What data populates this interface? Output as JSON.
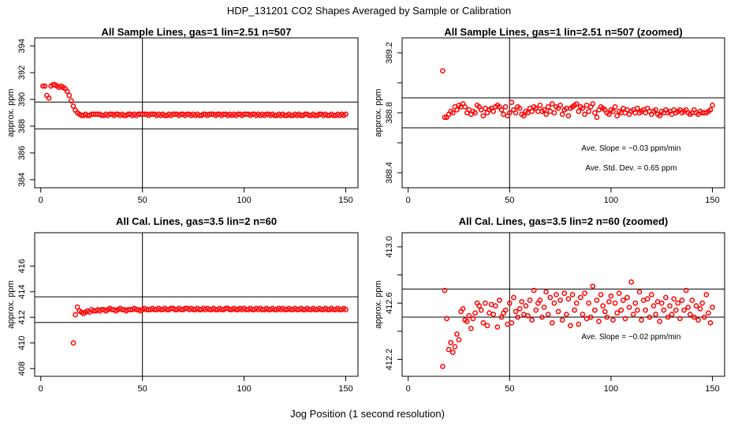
{
  "figure": {
    "title": "HDP_131201  CO2 Shapes Averaged by Sample or Calibration",
    "xlabel": "Jog Position (1 second resolution)"
  },
  "chart_data": [
    {
      "type": "scatter",
      "title": "All Sample Lines, gas=1 lin=2.51 n=507",
      "ylabel": "approx. ppm",
      "xlim": [
        -3,
        156
      ],
      "ylim": [
        383.4,
        394.6
      ],
      "xticks": [
        0,
        50,
        100,
        150
      ],
      "yticks": [
        384,
        386,
        388,
        390,
        392,
        394
      ],
      "hlines": [
        387.8,
        389.8
      ],
      "vline": 50,
      "marker_color": "#ff0000",
      "annotations": [],
      "series": [
        {
          "x_start": 1,
          "x_step": 1,
          "y": [
            391.0,
            391.0,
            390.3,
            390.1,
            391.0,
            391.1,
            391.1,
            391.0,
            390.9,
            391.0,
            390.9,
            390.8,
            390.6,
            390.3,
            389.9,
            389.5,
            389.2,
            389.0,
            388.9,
            388.8,
            388.8,
            388.9,
            388.8,
            388.8,
            388.9,
            388.9,
            388.9,
            388.9,
            388.9,
            388.8,
            388.8,
            388.9,
            388.8,
            388.9,
            388.9,
            388.8,
            388.9,
            388.9,
            388.8,
            388.9,
            388.8,
            388.8,
            388.9,
            388.9,
            388.8,
            388.9,
            388.8,
            388.9,
            388.9,
            388.9,
            388.9,
            388.9,
            388.8,
            388.9,
            388.9,
            388.9,
            388.8,
            388.9,
            388.8,
            388.9,
            388.8,
            388.8,
            388.9,
            388.8,
            388.9,
            388.9,
            388.9,
            388.8,
            388.9,
            388.9,
            388.8,
            388.9,
            388.9,
            388.8,
            388.9,
            388.8,
            388.9,
            388.8,
            388.8,
            388.9,
            388.9,
            388.8,
            388.9,
            388.9,
            388.9,
            388.8,
            388.9,
            388.9,
            388.8,
            388.9,
            388.9,
            388.8,
            388.9,
            388.8,
            388.9,
            388.8,
            388.9,
            388.9,
            388.8,
            388.9,
            388.9,
            388.9,
            388.8,
            388.9,
            388.9,
            388.8,
            388.9,
            388.8,
            388.9,
            388.8,
            388.9,
            388.9,
            388.8,
            388.9,
            388.8,
            388.8,
            388.9,
            388.8,
            388.9,
            388.8,
            388.8,
            388.9,
            388.8,
            388.8,
            388.9,
            388.8,
            388.9,
            388.8,
            388.8,
            388.9,
            388.9,
            388.8,
            388.8,
            388.9,
            388.8,
            388.8,
            388.9,
            388.9,
            388.8,
            388.9,
            388.8,
            388.8,
            388.9,
            388.8,
            388.8,
            388.9,
            388.8,
            388.9,
            388.8,
            388.9
          ]
        }
      ]
    },
    {
      "type": "scatter",
      "title": "All Sample Lines, gas=1 lin=2.51 n=507 (zoomed)",
      "ylabel": "approx. ppm",
      "xlim": [
        -3,
        156
      ],
      "ylim": [
        388.3,
        389.3
      ],
      "xticks": [
        0,
        50,
        100,
        150
      ],
      "yticks": [
        388.4,
        388.6,
        388.8,
        389.0,
        389.2
      ],
      "ytick_labels": [
        "388.4",
        "",
        "388.8",
        "",
        "389.2"
      ],
      "hlines": [
        388.7,
        388.9
      ],
      "vline": 50,
      "marker_color": "#ff0000",
      "annotations": [
        "Ave. Slope =  −0.03  ppm/min",
        "Ave. Std. Dev. =  0.65  ppm"
      ],
      "series": [
        {
          "x_start": 17,
          "x_step": 1,
          "y": [
            389.08,
            388.77,
            388.77,
            388.79,
            388.81,
            388.8,
            388.84,
            388.82,
            388.85,
            388.84,
            388.86,
            388.84,
            388.8,
            388.82,
            388.79,
            388.81,
            388.8,
            388.85,
            388.84,
            388.82,
            388.78,
            388.83,
            388.8,
            388.82,
            388.83,
            388.81,
            388.84,
            388.85,
            388.84,
            388.82,
            388.79,
            388.84,
            388.78,
            388.8,
            388.87,
            388.82,
            388.8,
            388.84,
            388.83,
            388.79,
            388.78,
            388.81,
            388.8,
            388.83,
            388.81,
            388.84,
            388.83,
            388.81,
            388.85,
            388.81,
            388.82,
            388.79,
            388.84,
            388.81,
            388.86,
            388.8,
            388.84,
            388.83,
            388.85,
            388.79,
            388.82,
            388.83,
            388.78,
            388.83,
            388.84,
            388.85,
            388.86,
            388.81,
            388.84,
            388.83,
            388.79,
            388.85,
            388.81,
            388.84,
            388.86,
            388.8,
            388.77,
            388.82,
            388.84,
            388.83,
            388.82,
            388.8,
            388.79,
            388.82,
            388.81,
            388.84,
            388.78,
            388.81,
            388.8,
            388.83,
            388.8,
            388.82,
            388.79,
            388.81,
            388.82,
            388.8,
            388.83,
            388.8,
            388.81,
            388.82,
            388.8,
            388.83,
            388.81,
            388.79,
            388.81,
            388.82,
            388.79,
            388.78,
            388.81,
            388.8,
            388.82,
            388.8,
            388.81,
            388.79,
            388.82,
            388.8,
            388.81,
            388.82,
            388.8,
            388.81,
            388.82,
            388.8,
            388.79,
            388.8,
            388.82,
            388.8,
            388.79,
            388.81,
            388.8,
            388.8,
            388.8,
            388.81,
            388.82,
            388.85
          ]
        }
      ]
    },
    {
      "type": "scatter",
      "title": "All Cal. Lines, gas=3.5 lin=2 n=60",
      "ylabel": "approx. ppm",
      "xlim": [
        -3,
        156
      ],
      "ylim": [
        407.4,
        418.6
      ],
      "xticks": [
        0,
        50,
        100,
        150
      ],
      "yticks": [
        408,
        410,
        412,
        414,
        416
      ],
      "hlines": [
        411.6,
        413.6
      ],
      "vline": 50,
      "marker_color": "#ff0000",
      "annotations": [],
      "series": [
        {
          "x_start": 16,
          "x_step": 1,
          "y": [
            410.0,
            412.2,
            412.8,
            412.5,
            412.4,
            412.3,
            412.4,
            412.5,
            412.4,
            412.6,
            412.5,
            412.5,
            412.6,
            412.5,
            412.6,
            412.6,
            412.5,
            412.6,
            412.7,
            412.6,
            412.6,
            412.5,
            412.6,
            412.7,
            412.6,
            412.6,
            412.5,
            412.6,
            412.6,
            412.6,
            412.7,
            412.6,
            412.6,
            412.5,
            412.6,
            412.7,
            412.6,
            412.6,
            412.6,
            412.7,
            412.6,
            412.6,
            412.7,
            412.6,
            412.6,
            412.7,
            412.6,
            412.6,
            412.7,
            412.7,
            412.6,
            412.6,
            412.7,
            412.6,
            412.6,
            412.7,
            412.7,
            412.6,
            412.7,
            412.6,
            412.6,
            412.7,
            412.6,
            412.6,
            412.7,
            412.6,
            412.7,
            412.6,
            412.6,
            412.7,
            412.6,
            412.6,
            412.7,
            412.6,
            412.6,
            412.7,
            412.7,
            412.6,
            412.6,
            412.7,
            412.6,
            412.6,
            412.7,
            412.6,
            412.7,
            412.6,
            412.6,
            412.7,
            412.6,
            412.6,
            412.7,
            412.6,
            412.7,
            412.6,
            412.6,
            412.7,
            412.6,
            412.6,
            412.7,
            412.6,
            412.6,
            412.7,
            412.6,
            412.7,
            412.6,
            412.6,
            412.7,
            412.6,
            412.6,
            412.7,
            412.6,
            412.6,
            412.7,
            412.6,
            412.6,
            412.7,
            412.6,
            412.6,
            412.7,
            412.6,
            412.6,
            412.7,
            412.6,
            412.6,
            412.7,
            412.6,
            412.6,
            412.7,
            412.6,
            412.6,
            412.7,
            412.6,
            412.6,
            412.7,
            412.6
          ]
        }
      ]
    },
    {
      "type": "scatter",
      "title": "All Cal. Lines, gas=3.5 lin=2 n=60 (zoomed)",
      "ylabel": "approx. ppm",
      "xlim": [
        -3,
        156
      ],
      "ylim": [
        412.08,
        413.1
      ],
      "xticks": [
        0,
        50,
        100,
        150
      ],
      "yticks": [
        412.2,
        412.4,
        412.6,
        412.8,
        413.0
      ],
      "ytick_labels": [
        "412.2",
        "",
        "412.6",
        "",
        "413.0"
      ],
      "hlines": [
        412.5,
        412.7
      ],
      "vline": 50,
      "marker_color": "#ff0000",
      "annotations": [
        "Ave. Slope =  −0.02  ppm/min"
      ],
      "series": [
        {
          "x": [
            17,
            18,
            19,
            20,
            21,
            22,
            23,
            24,
            25,
            26,
            27,
            28,
            29,
            30,
            31,
            32,
            33,
            34,
            35,
            36,
            37,
            38,
            39,
            40,
            41,
            42,
            43,
            44,
            45,
            46,
            47,
            48,
            49,
            50,
            51,
            52,
            53,
            54,
            55,
            56,
            57,
            58,
            59,
            60,
            61,
            62,
            63,
            64,
            65,
            66,
            67,
            68,
            69,
            70,
            71,
            72,
            73,
            74,
            75,
            76,
            77,
            78,
            79,
            80,
            81,
            82,
            83,
            84,
            85,
            86,
            87,
            88,
            89,
            90,
            91,
            92,
            93,
            94,
            95,
            96,
            97,
            98,
            99,
            100,
            101,
            102,
            103,
            104,
            105,
            106,
            107,
            108,
            109,
            110,
            111,
            112,
            113,
            114,
            115,
            116,
            117,
            118,
            119,
            120,
            121,
            122,
            123,
            124,
            125,
            126,
            127,
            128,
            129,
            130,
            131,
            132,
            133,
            134,
            135,
            136,
            137,
            138,
            139,
            140,
            141,
            142,
            143,
            144,
            145,
            146,
            147,
            148,
            149,
            150
          ],
          "y": [
            412.15,
            412.69,
            412.49,
            412.27,
            412.32,
            412.25,
            412.29,
            412.38,
            412.34,
            412.54,
            412.56,
            412.48,
            412.47,
            412.51,
            412.42,
            412.49,
            412.53,
            412.6,
            412.58,
            412.55,
            412.46,
            412.6,
            412.44,
            412.53,
            412.59,
            412.52,
            412.58,
            412.43,
            412.62,
            412.5,
            412.53,
            412.55,
            412.45,
            412.6,
            412.46,
            412.64,
            412.54,
            412.5,
            412.56,
            412.61,
            412.52,
            412.58,
            412.51,
            412.62,
            412.48,
            412.69,
            412.55,
            412.6,
            412.62,
            412.5,
            412.57,
            412.68,
            412.52,
            412.64,
            412.46,
            412.6,
            412.66,
            412.54,
            412.62,
            412.48,
            412.67,
            412.52,
            412.63,
            412.44,
            412.66,
            412.55,
            412.6,
            412.45,
            412.64,
            412.52,
            412.67,
            412.49,
            412.6,
            412.5,
            412.72,
            412.55,
            412.62,
            412.47,
            412.66,
            412.58,
            412.54,
            412.5,
            412.61,
            412.65,
            412.48,
            412.6,
            412.53,
            412.67,
            412.55,
            412.62,
            412.49,
            412.64,
            412.57,
            412.75,
            412.52,
            412.6,
            412.55,
            412.68,
            412.48,
            412.62,
            412.55,
            412.63,
            412.5,
            412.66,
            412.58,
            412.52,
            412.61,
            412.47,
            412.6,
            412.55,
            412.64,
            412.5,
            412.58,
            412.52,
            412.63,
            412.55,
            412.6,
            412.49,
            412.62,
            412.55,
            412.69,
            412.57,
            412.52,
            412.62,
            412.5,
            412.58,
            412.48,
            412.56,
            412.6,
            412.5,
            412.66,
            412.53,
            412.46,
            412.57
          ]
        }
      ]
    }
  ]
}
